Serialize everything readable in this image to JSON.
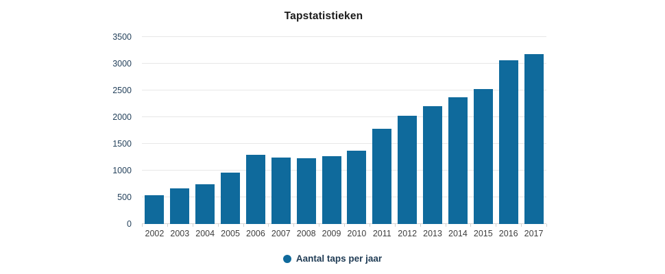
{
  "chart": {
    "title": "Tapstatistieken"
  },
  "legend": {
    "label": "Aantal taps per jaar",
    "marker": "circle-icon"
  },
  "colors": {
    "bar": "#0f6a9c",
    "gridline": "#e7e7e7",
    "baseline": "#d5d5d5",
    "tick": "#d0d0d0",
    "title_text": "#1a1a1a",
    "y_label_text": "#24415b",
    "x_label_text": "#3d3d3d",
    "legend_text": "#1f3b54",
    "background": "#ffffff"
  },
  "chart_data": {
    "type": "bar",
    "title": "Tapstatistieken",
    "categories": [
      "2002",
      "2003",
      "2004",
      "2005",
      "2006",
      "2007",
      "2008",
      "2009",
      "2010",
      "2011",
      "2012",
      "2013",
      "2014",
      "2015",
      "2016",
      "2017"
    ],
    "series": [
      {
        "name": "Aantal taps per jaar",
        "values": [
          535,
          665,
          750,
          965,
          1300,
          1240,
          1225,
          1270,
          1370,
          1780,
          2030,
          2200,
          2370,
          2520,
          3060,
          3180
        ]
      }
    ],
    "xlabel": "",
    "ylabel": "",
    "ylim": [
      0,
      3500
    ],
    "yticks": [
      0,
      500,
      1000,
      1500,
      2000,
      2500,
      3000,
      3500
    ],
    "grid": "horizontal",
    "legend_position": "bottom"
  }
}
